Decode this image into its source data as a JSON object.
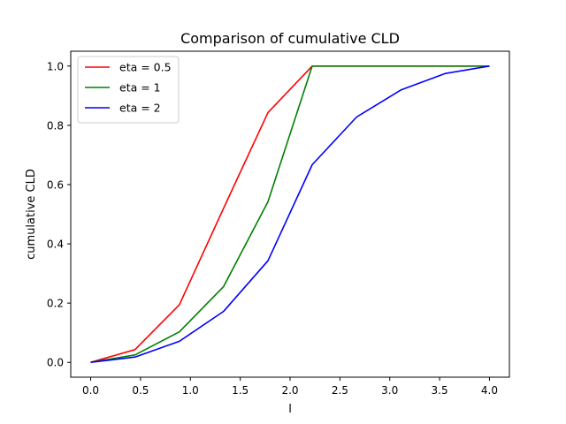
{
  "chart_data": {
    "type": "line",
    "title": "Comparison of cumulative CLD",
    "xlabel": "l",
    "ylabel": "cumulative CLD",
    "xlim": [
      -0.2,
      4.2
    ],
    "ylim": [
      -0.05,
      1.05
    ],
    "xticks": [
      "0.0",
      "0.5",
      "1.0",
      "1.5",
      "2.0",
      "2.5",
      "3.0",
      "3.5",
      "4.0"
    ],
    "yticks": [
      "0.0",
      "0.2",
      "0.4",
      "0.6",
      "0.8",
      "1.0"
    ],
    "grid": false,
    "legend_position": "top-left",
    "series": [
      {
        "name": "eta = 0.5",
        "color": "#ff0000",
        "x": [
          0.0,
          0.444,
          0.889,
          1.333,
          1.778,
          2.222,
          2.667,
          3.111,
          3.556,
          4.0
        ],
        "y": [
          0.0,
          0.043,
          0.194,
          0.52,
          0.843,
          1.0,
          1.0,
          1.0,
          1.0,
          1.0
        ]
      },
      {
        "name": "eta = 1",
        "color": "#008000",
        "x": [
          0.0,
          0.444,
          0.889,
          1.333,
          1.778,
          2.222,
          2.667,
          3.111,
          3.556,
          4.0
        ],
        "y": [
          0.0,
          0.025,
          0.103,
          0.256,
          0.542,
          1.0,
          1.0,
          1.0,
          1.0,
          1.0
        ]
      },
      {
        "name": "eta = 2",
        "color": "#0000ff",
        "x": [
          0.0,
          0.444,
          0.889,
          1.333,
          1.778,
          2.222,
          2.667,
          3.111,
          3.556,
          4.0
        ],
        "y": [
          0.0,
          0.018,
          0.071,
          0.172,
          0.343,
          0.667,
          0.828,
          0.919,
          0.975,
          1.0
        ]
      }
    ]
  }
}
